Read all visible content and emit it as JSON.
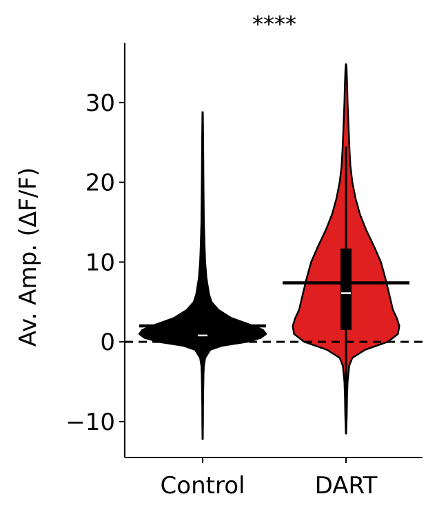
{
  "chart_data": {
    "type": "violin",
    "title": "****",
    "ylabel": "Av. Amp. (ΔF/F)",
    "xlabel": "",
    "ylim": [
      -14.5,
      37.5
    ],
    "yticks": [
      -10,
      0,
      10,
      20,
      30
    ],
    "ytick_labels": [
      "−10",
      "0",
      "10",
      "20",
      "30"
    ],
    "reference_line": 0,
    "grid": false,
    "categories": [
      "Control",
      "DART"
    ],
    "series": [
      {
        "category": "Control",
        "color": "#000000",
        "min": -12.2,
        "max": 28.8,
        "q1": 0.3,
        "median": 0.8,
        "q3": 1.6,
        "mean": 2.0,
        "density": [
          [
            -12.2,
            0.002
          ],
          [
            -10,
            0.005
          ],
          [
            -8,
            0.007
          ],
          [
            -6,
            0.01
          ],
          [
            -4,
            0.014
          ],
          [
            -3,
            0.02
          ],
          [
            -2,
            0.04
          ],
          [
            -1,
            0.12
          ],
          [
            -0.5,
            0.3
          ],
          [
            0,
            0.7
          ],
          [
            0.5,
            0.92
          ],
          [
            1,
            1.0
          ],
          [
            1.5,
            0.95
          ],
          [
            2,
            0.8
          ],
          [
            3,
            0.45
          ],
          [
            4,
            0.25
          ],
          [
            5,
            0.14
          ],
          [
            6,
            0.1
          ],
          [
            8,
            0.06
          ],
          [
            10,
            0.04
          ],
          [
            12,
            0.03
          ],
          [
            15,
            0.02
          ],
          [
            20,
            0.013
          ],
          [
            25,
            0.009
          ],
          [
            28.8,
            0.003
          ]
        ]
      },
      {
        "category": "DART",
        "color": "#e02020",
        "min": -11.5,
        "max": 34.8,
        "q1": 1.5,
        "median": 6.1,
        "q3": 11.7,
        "whisker_low": -11.5,
        "whisker_high": 24.5,
        "mean": 7.4,
        "density": [
          [
            -11.5,
            0.002
          ],
          [
            -9,
            0.012
          ],
          [
            -7,
            0.016
          ],
          [
            -5,
            0.025
          ],
          [
            -3,
            0.05
          ],
          [
            -2,
            0.1
          ],
          [
            -1,
            0.3
          ],
          [
            0,
            0.66
          ],
          [
            1,
            0.82
          ],
          [
            2,
            0.84
          ],
          [
            3,
            0.8
          ],
          [
            4,
            0.74
          ],
          [
            6,
            0.68
          ],
          [
            8,
            0.62
          ],
          [
            10,
            0.55
          ],
          [
            12,
            0.44
          ],
          [
            14,
            0.32
          ],
          [
            16,
            0.22
          ],
          [
            18,
            0.15
          ],
          [
            20,
            0.1
          ],
          [
            22,
            0.07
          ],
          [
            24,
            0.055
          ],
          [
            26,
            0.045
          ],
          [
            28,
            0.035
          ],
          [
            30,
            0.025
          ],
          [
            32,
            0.018
          ],
          [
            34,
            0.01
          ],
          [
            34.8,
            0.003
          ]
        ]
      }
    ]
  }
}
